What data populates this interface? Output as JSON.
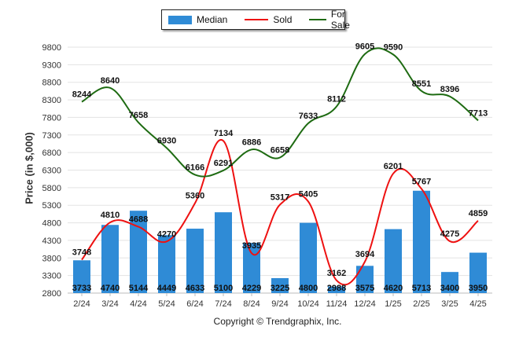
{
  "legend": {
    "median_label": "Median",
    "sold_label": "Sold",
    "for_sale_label": "For Sale"
  },
  "colors": {
    "median": "#2f8bd6",
    "sold": "#ee1111",
    "for_sale": "#1e6b12"
  },
  "footer": {
    "copyright": "Copyright © Trendgraphix, Inc."
  },
  "chart_data": {
    "type": "bar",
    "ylabel": "Price (in $,000)",
    "xlabel": "",
    "ylim": [
      2800,
      9800
    ],
    "yticks": [
      2800,
      3300,
      3800,
      4300,
      4800,
      5300,
      5800,
      6300,
      6800,
      7300,
      7800,
      8300,
      8800,
      9300,
      9800
    ],
    "grid": true,
    "legend_position": "top",
    "categories": [
      "2/24",
      "3/24",
      "4/24",
      "5/24",
      "6/24",
      "7/24",
      "8/24",
      "9/24",
      "10/24",
      "11/24",
      "12/24",
      "1/25",
      "2/25",
      "3/25",
      "4/25"
    ],
    "series": [
      {
        "name": "Median",
        "type": "bar",
        "values": [
          3733,
          4740,
          5144,
          4449,
          4633,
          5100,
          4229,
          3225,
          4800,
          2988,
          3575,
          4620,
          5713,
          3400,
          3950
        ]
      },
      {
        "name": "Sold",
        "type": "line",
        "values": [
          3748,
          4810,
          4688,
          4270,
          5360,
          7134,
          3935,
          5317,
          5405,
          3162,
          3694,
          6201,
          5767,
          4275,
          4859
        ]
      },
      {
        "name": "For Sale",
        "type": "line",
        "values": [
          8244,
          8640,
          7658,
          6930,
          6166,
          6291,
          6886,
          6658,
          7633,
          8112,
          9605,
          9590,
          8551,
          8396,
          7713
        ]
      }
    ]
  }
}
